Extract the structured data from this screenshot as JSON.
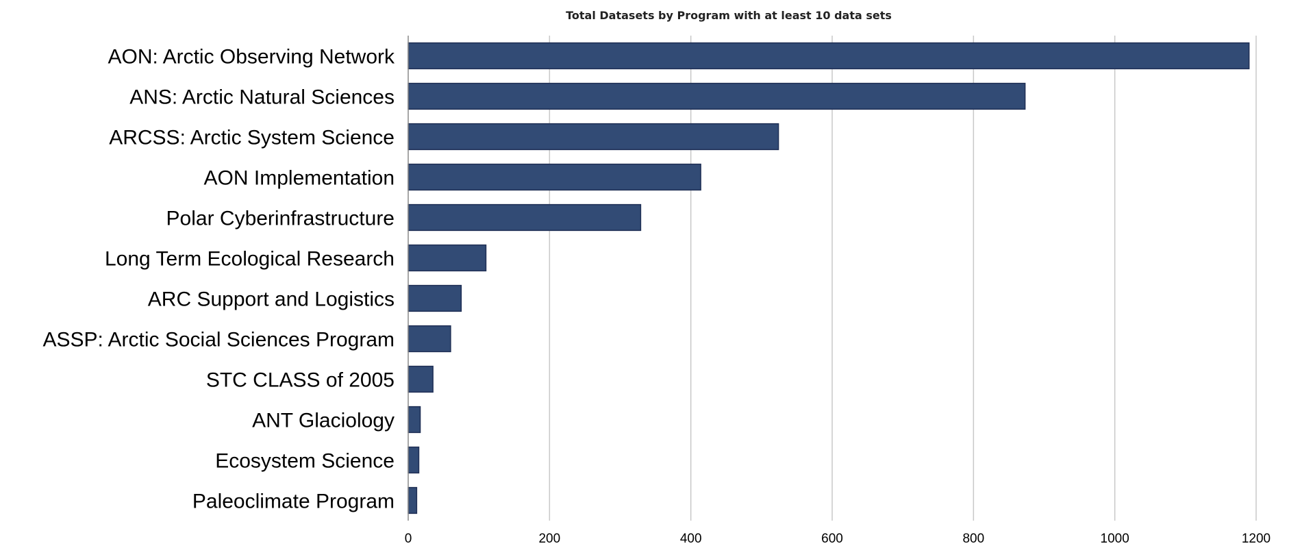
{
  "chart_data": {
    "type": "bar",
    "orientation": "horizontal",
    "title": "Total Datasets by Program with at least 10 data sets",
    "xlabel": "",
    "ylabel": "",
    "categories": [
      "AON: Arctic Observing Network",
      "ANS: Arctic Natural Sciences",
      "ARCSS: Arctic System Science",
      "AON Implementation",
      "Polar Cyberinfrastructure",
      "Long Term Ecological Research",
      "ARC Support and Logistics",
      "ASSP: Arctic Social Sciences Program",
      "STC CLASS of 2005",
      "ANT Glaciology",
      "Ecosystem Science",
      "Paleoclimate Program"
    ],
    "values": [
      1190,
      873,
      524,
      414,
      329,
      110,
      75,
      60,
      35,
      17,
      15,
      12
    ],
    "xlim": [
      0,
      1200
    ],
    "xticks": [
      0,
      200,
      400,
      600,
      800,
      1000,
      1200
    ],
    "grid": true,
    "legend": "none",
    "bar_color": "#324b75"
  }
}
